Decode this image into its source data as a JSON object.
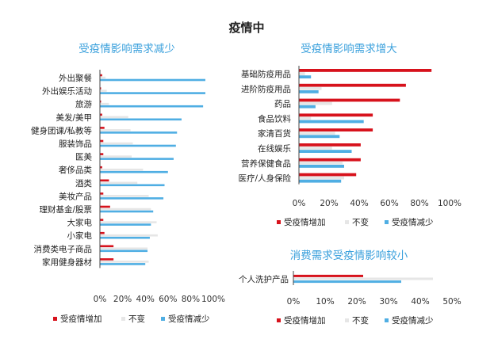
{
  "page_title": "疫情中",
  "colors": {
    "increase": "#d7121c",
    "unchanged": "#e6e6e6",
    "decrease": "#4faee3",
    "subtitle": "#3aa0dc",
    "text": "#222222",
    "axis": "#333333"
  },
  "legend_labels": [
    "受疫情增加",
    "不变",
    "受疫情减少"
  ],
  "chart_data": [
    {
      "type": "bar",
      "orientation": "horizontal",
      "title": "受疫情影响需求减少",
      "categories": [
        "外出聚餐",
        "外出娱乐活动",
        "旅游",
        "美发/美甲",
        "健身团课/私教等",
        "服装饰品",
        "医美",
        "奢侈品类",
        "酒类",
        "美妆产品",
        "理财基金/股票",
        "大家电",
        "小家电",
        "消费类电子商品",
        "家用健身器材"
      ],
      "series": [
        {
          "name": "受疫情增加",
          "values": [
            2,
            1,
            1,
            2,
            4,
            3,
            3,
            2,
            8,
            3,
            9,
            3,
            4,
            12,
            12
          ]
        },
        {
          "name": "不变",
          "values": [
            5,
            6,
            8,
            25,
            27,
            29,
            28,
            38,
            33,
            43,
            45,
            50,
            51,
            42,
            43
          ]
        },
        {
          "name": "受疫情减少",
          "values": [
            93,
            93,
            91,
            72,
            68,
            67,
            65,
            60,
            57,
            56,
            47,
            45,
            44,
            42,
            40
          ]
        }
      ],
      "xlim": [
        0,
        100
      ],
      "xticks": [
        "0%",
        "20%",
        "40%",
        "60%",
        "80%",
        "100%"
      ],
      "legend": "bottom"
    },
    {
      "type": "bar",
      "orientation": "horizontal",
      "title": "受疫情影响需求增大",
      "categories": [
        "基础防疫用品",
        "进阶防疫用品",
        "药品",
        "食品饮料",
        "家清百货",
        "在线娱乐",
        "营养保健食品",
        "医疗/人身保险"
      ],
      "series": [
        {
          "name": "受疫情增加",
          "values": [
            88,
            71,
            67,
            49,
            49,
            41,
            41,
            38
          ]
        },
        {
          "name": "不变",
          "values": [
            4,
            15,
            22,
            8,
            24,
            22,
            29,
            30
          ]
        },
        {
          "name": "受疫情减少",
          "values": [
            8,
            13,
            11,
            43,
            27,
            35,
            30,
            28
          ]
        }
      ],
      "xlim": [
        0,
        100
      ],
      "xticks": [
        "0%",
        "20%",
        "40%",
        "60%",
        "80%",
        "100%"
      ],
      "legend": "bottom"
    },
    {
      "type": "bar",
      "orientation": "horizontal",
      "title": "消费需求受疫情影响较小",
      "categories": [
        "个人洗护产品"
      ],
      "series": [
        {
          "name": "受疫情增加",
          "values": [
            22
          ]
        },
        {
          "name": "不变",
          "values": [
            44
          ]
        },
        {
          "name": "受疫情减少",
          "values": [
            34
          ]
        }
      ],
      "xlim": [
        0,
        50
      ],
      "xticks": [
        "0%",
        "10%",
        "20%",
        "30%",
        "40%",
        "50%"
      ],
      "legend": "bottom"
    }
  ]
}
